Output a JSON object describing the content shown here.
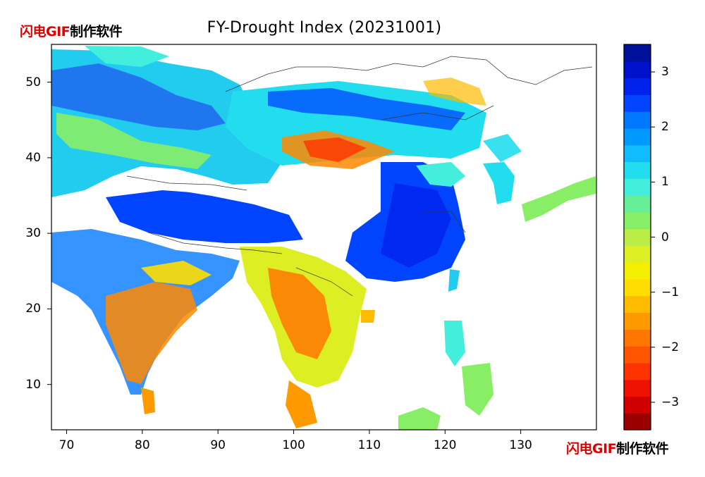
{
  "watermark": {
    "red_part": "闪电GIF",
    "black_part": "制作软件"
  },
  "map": {
    "title": "FY-Drought Index (20231001)",
    "lon_range": [
      68,
      140
    ],
    "lat_range": [
      4,
      55
    ],
    "x_ticks": [
      "70",
      "80",
      "90",
      "100",
      "110",
      "120",
      "130"
    ],
    "y_ticks": [
      "50",
      "40",
      "30",
      "20",
      "10"
    ],
    "x_tick_values": [
      70,
      80,
      90,
      100,
      110,
      120,
      130
    ],
    "y_tick_values": [
      50,
      40,
      30,
      20,
      10
    ]
  },
  "colorbar": {
    "min": -3.5,
    "max": 3.5,
    "tick_labels": [
      "3",
      "2",
      "1",
      "0",
      "−1",
      "−2",
      "−3"
    ],
    "tick_values": [
      3,
      2,
      1,
      0,
      -1,
      -2,
      -3
    ],
    "colors": [
      "#9b0000",
      "#d00000",
      "#ee1100",
      "#ff3300",
      "#ff5500",
      "#ff7700",
      "#ff9900",
      "#ffbb00",
      "#ffdd00",
      "#f5ee00",
      "#ddee22",
      "#bbee44",
      "#88ee66",
      "#66ee99",
      "#44eedd",
      "#22ddee",
      "#11bbff",
      "#0099ff",
      "#0077ff",
      "#0044ff",
      "#0022ee",
      "#0011cc",
      "#001199"
    ]
  }
}
